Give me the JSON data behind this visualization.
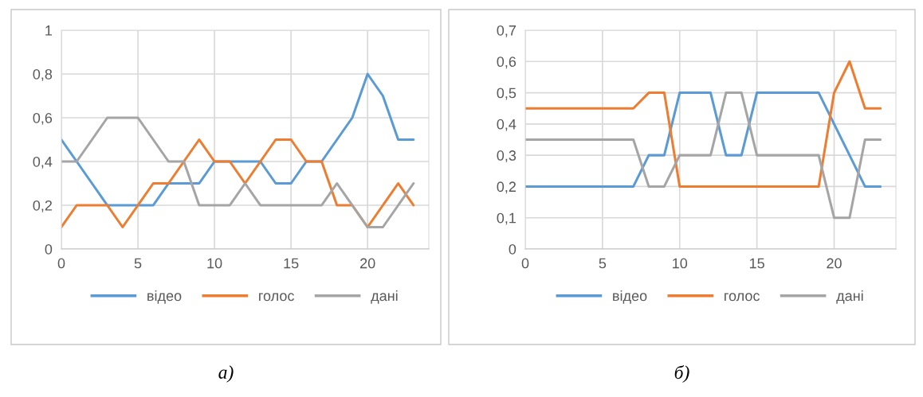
{
  "chart_data": [
    {
      "type": "line",
      "x": [
        0,
        1,
        2,
        3,
        4,
        5,
        6,
        7,
        8,
        9,
        10,
        11,
        12,
        13,
        14,
        15,
        16,
        17,
        18,
        19,
        20,
        21,
        22,
        23
      ],
      "series": [
        {
          "name": "відео",
          "color": "#5b9bd5",
          "values": [
            0.5,
            0.4,
            0.3,
            0.2,
            0.2,
            0.2,
            0.2,
            0.3,
            0.3,
            0.3,
            0.4,
            0.4,
            0.4,
            0.4,
            0.3,
            0.3,
            0.4,
            0.4,
            0.5,
            0.6,
            0.8,
            0.7,
            0.5,
            0.5
          ]
        },
        {
          "name": "голос",
          "color": "#ed7d31",
          "values": [
            0.1,
            0.2,
            0.2,
            0.2,
            0.1,
            0.2,
            0.3,
            0.3,
            0.4,
            0.5,
            0.4,
            0.4,
            0.3,
            0.4,
            0.5,
            0.5,
            0.4,
            0.4,
            0.2,
            0.2,
            0.1,
            0.2,
            0.3,
            0.2
          ]
        },
        {
          "name": "дані",
          "color": "#a5a5a5",
          "values": [
            0.4,
            0.4,
            0.5,
            0.6,
            0.6,
            0.6,
            0.5,
            0.4,
            0.4,
            0.2,
            0.2,
            0.2,
            0.3,
            0.2,
            0.2,
            0.2,
            0.2,
            0.2,
            0.3,
            0.2,
            0.1,
            0.1,
            0.2,
            0.3
          ]
        }
      ],
      "xlim": [
        0,
        24
      ],
      "xticks": [
        0,
        5,
        10,
        15,
        20
      ],
      "ylim": [
        0,
        1
      ],
      "yticks": [
        0,
        {
          "value": 0.2,
          "label": "0,2"
        },
        {
          "value": 0.4,
          "label": "0,4"
        },
        {
          "value": 0.6,
          "label": "0,6"
        },
        {
          "value": 0.8,
          "label": "0,8"
        },
        1
      ],
      "grid": true,
      "legend": "bottom",
      "marker": "none",
      "line_style": "solid",
      "annotations": [
        "а)"
      ]
    },
    {
      "type": "line",
      "x": [
        0,
        1,
        2,
        3,
        4,
        5,
        6,
        7,
        8,
        9,
        10,
        11,
        12,
        13,
        14,
        15,
        16,
        17,
        18,
        19,
        20,
        21,
        22,
        23
      ],
      "series": [
        {
          "name": "відео",
          "color": "#5b9bd5",
          "values": [
            0.2,
            0.2,
            0.2,
            0.2,
            0.2,
            0.2,
            0.2,
            0.2,
            0.3,
            0.3,
            0.5,
            0.5,
            0.5,
            0.3,
            0.3,
            0.5,
            0.5,
            0.5,
            0.5,
            0.5,
            0.4,
            0.3,
            0.2,
            0.2
          ]
        },
        {
          "name": "голос",
          "color": "#ed7d31",
          "values": [
            0.45,
            0.45,
            0.45,
            0.45,
            0.45,
            0.45,
            0.45,
            0.45,
            0.5,
            0.5,
            0.2,
            0.2,
            0.2,
            0.2,
            0.2,
            0.2,
            0.2,
            0.2,
            0.2,
            0.2,
            0.5,
            0.6,
            0.45,
            0.45
          ]
        },
        {
          "name": "дані",
          "color": "#a5a5a5",
          "values": [
            0.35,
            0.35,
            0.35,
            0.35,
            0.35,
            0.35,
            0.35,
            0.35,
            0.2,
            0.2,
            0.3,
            0.3,
            0.3,
            0.5,
            0.5,
            0.3,
            0.3,
            0.3,
            0.3,
            0.3,
            0.1,
            0.1,
            0.35,
            0.35
          ]
        }
      ],
      "xlim": [
        0,
        24
      ],
      "xticks": [
        0,
        5,
        10,
        15,
        20
      ],
      "ylim": [
        0,
        0.7
      ],
      "yticks": [
        0,
        {
          "value": 0.1,
          "label": "0,1"
        },
        {
          "value": 0.2,
          "label": "0,2"
        },
        {
          "value": 0.3,
          "label": "0,3"
        },
        {
          "value": 0.4,
          "label": "0,4"
        },
        {
          "value": 0.5,
          "label": "0,5"
        },
        {
          "value": 0.6,
          "label": "0,6"
        },
        {
          "value": 0.7,
          "label": "0,7"
        }
      ],
      "grid": true,
      "legend": "bottom",
      "marker": "none",
      "line_style": "solid",
      "annotations": [
        "б)"
      ]
    }
  ]
}
